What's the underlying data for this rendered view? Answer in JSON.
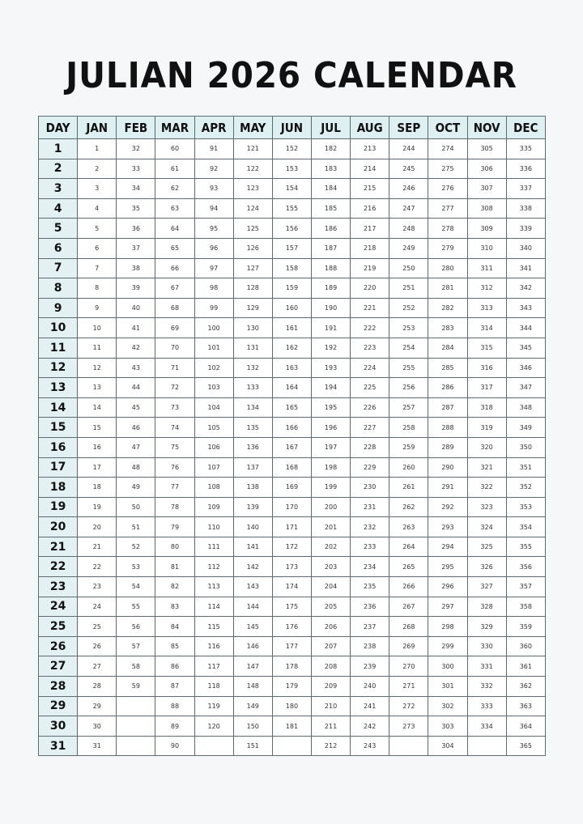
{
  "title": "JULIAN 2026 CALENDAR",
  "colors": {
    "header_bg": "#def0f2",
    "day_col_bg": "#e4f1f3",
    "border": "#5d6b70"
  },
  "headers": [
    "DAY",
    "JAN",
    "FEB",
    "MAR",
    "APR",
    "MAY",
    "JUN",
    "JUL",
    "AUG",
    "SEP",
    "OCT",
    "NOV",
    "DEC"
  ],
  "rows": [
    [
      "1",
      "1",
      "32",
      "60",
      "91",
      "121",
      "152",
      "182",
      "213",
      "244",
      "274",
      "305",
      "335"
    ],
    [
      "2",
      "2",
      "33",
      "61",
      "92",
      "122",
      "153",
      "183",
      "214",
      "245",
      "275",
      "306",
      "336"
    ],
    [
      "3",
      "3",
      "34",
      "62",
      "93",
      "123",
      "154",
      "184",
      "215",
      "246",
      "276",
      "307",
      "337"
    ],
    [
      "4",
      "4",
      "35",
      "63",
      "94",
      "124",
      "155",
      "185",
      "216",
      "247",
      "277",
      "308",
      "338"
    ],
    [
      "5",
      "5",
      "36",
      "64",
      "95",
      "125",
      "156",
      "186",
      "217",
      "248",
      "278",
      "309",
      "339"
    ],
    [
      "6",
      "6",
      "37",
      "65",
      "96",
      "126",
      "157",
      "187",
      "218",
      "249",
      "279",
      "310",
      "340"
    ],
    [
      "7",
      "7",
      "38",
      "66",
      "97",
      "127",
      "158",
      "188",
      "219",
      "250",
      "280",
      "311",
      "341"
    ],
    [
      "8",
      "8",
      "39",
      "67",
      "98",
      "128",
      "159",
      "189",
      "220",
      "251",
      "281",
      "312",
      "342"
    ],
    [
      "9",
      "9",
      "40",
      "68",
      "99",
      "129",
      "160",
      "190",
      "221",
      "252",
      "282",
      "313",
      "343"
    ],
    [
      "10",
      "10",
      "41",
      "69",
      "100",
      "130",
      "161",
      "191",
      "222",
      "253",
      "283",
      "314",
      "344"
    ],
    [
      "11",
      "11",
      "42",
      "70",
      "101",
      "131",
      "162",
      "192",
      "223",
      "254",
      "284",
      "315",
      "345"
    ],
    [
      "12",
      "12",
      "43",
      "71",
      "102",
      "132",
      "163",
      "193",
      "224",
      "255",
      "285",
      "316",
      "346"
    ],
    [
      "13",
      "13",
      "44",
      "72",
      "103",
      "133",
      "164",
      "194",
      "225",
      "256",
      "286",
      "317",
      "347"
    ],
    [
      "14",
      "14",
      "45",
      "73",
      "104",
      "134",
      "165",
      "195",
      "226",
      "257",
      "287",
      "318",
      "348"
    ],
    [
      "15",
      "15",
      "46",
      "74",
      "105",
      "135",
      "166",
      "196",
      "227",
      "258",
      "288",
      "319",
      "349"
    ],
    [
      "16",
      "16",
      "47",
      "75",
      "106",
      "136",
      "167",
      "197",
      "228",
      "259",
      "289",
      "320",
      "350"
    ],
    [
      "17",
      "17",
      "48",
      "76",
      "107",
      "137",
      "168",
      "198",
      "229",
      "260",
      "290",
      "321",
      "351"
    ],
    [
      "18",
      "18",
      "49",
      "77",
      "108",
      "138",
      "169",
      "199",
      "230",
      "261",
      "291",
      "322",
      "352"
    ],
    [
      "19",
      "19",
      "50",
      "78",
      "109",
      "139",
      "170",
      "200",
      "231",
      "262",
      "292",
      "323",
      "353"
    ],
    [
      "20",
      "20",
      "51",
      "79",
      "110",
      "140",
      "171",
      "201",
      "232",
      "263",
      "293",
      "324",
      "354"
    ],
    [
      "21",
      "21",
      "52",
      "80",
      "111",
      "141",
      "172",
      "202",
      "233",
      "264",
      "294",
      "325",
      "355"
    ],
    [
      "22",
      "22",
      "53",
      "81",
      "112",
      "142",
      "173",
      "203",
      "234",
      "265",
      "295",
      "326",
      "356"
    ],
    [
      "23",
      "23",
      "54",
      "82",
      "113",
      "143",
      "174",
      "204",
      "235",
      "266",
      "296",
      "327",
      "357"
    ],
    [
      "24",
      "24",
      "55",
      "83",
      "114",
      "144",
      "175",
      "205",
      "236",
      "267",
      "297",
      "328",
      "358"
    ],
    [
      "25",
      "25",
      "56",
      "84",
      "115",
      "145",
      "176",
      "206",
      "237",
      "268",
      "298",
      "329",
      "359"
    ],
    [
      "26",
      "26",
      "57",
      "85",
      "116",
      "146",
      "177",
      "207",
      "238",
      "269",
      "299",
      "330",
      "360"
    ],
    [
      "27",
      "27",
      "58",
      "86",
      "117",
      "147",
      "178",
      "208",
      "239",
      "270",
      "300",
      "331",
      "361"
    ],
    [
      "28",
      "28",
      "59",
      "87",
      "118",
      "148",
      "179",
      "209",
      "240",
      "271",
      "301",
      "332",
      "362"
    ],
    [
      "29",
      "29",
      "",
      "88",
      "119",
      "149",
      "180",
      "210",
      "241",
      "272",
      "302",
      "333",
      "363"
    ],
    [
      "30",
      "30",
      "",
      "89",
      "120",
      "150",
      "181",
      "211",
      "242",
      "273",
      "303",
      "334",
      "364"
    ],
    [
      "31",
      "31",
      "",
      "90",
      "",
      "151",
      "",
      "212",
      "243",
      "",
      "304",
      "",
      "365"
    ]
  ]
}
